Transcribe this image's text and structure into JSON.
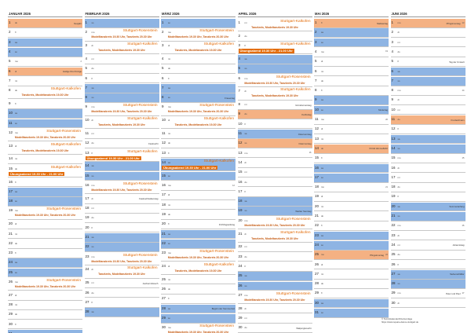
{
  "colors": {
    "weekend": "#8eb4e3",
    "holiday": "#f4b183",
    "event_text": "#e36c09",
    "event_box": "#e36c09"
  },
  "months": [
    {
      "label": "JANUAR 2026",
      "days": [
        {
          "n": "1",
          "w": "do",
          "type": "holiday",
          "hol": "Neujahr"
        },
        {
          "n": "2",
          "w": "fr"
        },
        {
          "n": "3",
          "w": "sa",
          "type": "weekend"
        },
        {
          "n": "4",
          "w": "so",
          "type": "weekend"
        },
        {
          "n": "5",
          "w": "mo",
          "kw": "2"
        },
        {
          "n": "6",
          "w": "di",
          "type": "holiday",
          "hol": "Heilige Drei Könige"
        },
        {
          "n": "7",
          "w": "mi"
        },
        {
          "n": "8",
          "w": "do",
          "event": {
            "title": "Stuttgart-Kalkofen",
            "sub": "Tanzkreis, Modeltanzkreis 19.30 Uhr"
          }
        },
        {
          "n": "9",
          "w": "fr"
        },
        {
          "n": "10",
          "w": "sa",
          "type": "weekend"
        },
        {
          "n": "11",
          "w": "so",
          "type": "weekend"
        },
        {
          "n": "12",
          "w": "mo",
          "kw": "3",
          "event": {
            "title": "Stuttgart-Rosenstein",
            "sub": "Modelltanzkreis 19.30 Uhr, Tanzkreis 20.30 Uhr"
          }
        },
        {
          "n": "13",
          "w": "di",
          "event": {
            "title": "Stuttgart-Kalkofen",
            "sub": "Tanzkreis, Modeltanzkreis 19.30 Uhr"
          }
        },
        {
          "n": "14",
          "w": "mi"
        },
        {
          "n": "15",
          "w": "do",
          "event": {
            "title": "Stuttgart-Kalkofen",
            "box": "Übungsabend 19.30 Uhr - 21.00 Uhr"
          }
        },
        {
          "n": "16",
          "w": "fr"
        },
        {
          "n": "17",
          "w": "sa",
          "type": "weekend"
        },
        {
          "n": "18",
          "w": "so",
          "type": "weekend"
        },
        {
          "n": "19",
          "w": "mo",
          "kw": "4",
          "event": {
            "title": "Stuttgart-Rosenstein",
            "sub": "Modelltanzkreis 19.30 Uhr, Tanzkreis 20.30 Uhr"
          }
        },
        {
          "n": "20",
          "w": "di"
        },
        {
          "n": "21",
          "w": "mi"
        },
        {
          "n": "22",
          "w": "do"
        },
        {
          "n": "23",
          "w": "fr"
        },
        {
          "n": "24",
          "w": "sa",
          "type": "weekend"
        },
        {
          "n": "25",
          "w": "so",
          "type": "weekend"
        },
        {
          "n": "26",
          "w": "mo",
          "kw": "5",
          "event": {
            "title": "Stuttgart-Rosenstein",
            "sub": "Modelltanzkreis 19.30 Uhr, Tanzkreis 20.30 Uhr"
          }
        },
        {
          "n": "27",
          "w": "di"
        },
        {
          "n": "28",
          "w": "mi"
        },
        {
          "n": "29",
          "w": "do"
        },
        {
          "n": "30",
          "w": "fr"
        },
        {
          "n": "31",
          "w": "sa",
          "type": "weekend"
        }
      ]
    },
    {
      "label": "FEBRUAR 2026",
      "days": [
        {
          "n": "1",
          "w": "so",
          "type": "weekend"
        },
        {
          "n": "2",
          "w": "mo",
          "kw": "6",
          "event": {
            "title": "Stuttgart-Rosenstein",
            "sub": "Modelltanzkreis 19.30 Uhr, Tanzkreis 20.30 Uhr"
          }
        },
        {
          "n": "3",
          "w": "di",
          "event": {
            "title": "Stuttgart-Kalkofen",
            "sub": "Tanzkreis, Modeltanzkreis 19.30 Uhr"
          }
        },
        {
          "n": "4",
          "w": "mi"
        },
        {
          "n": "5",
          "w": "do"
        },
        {
          "n": "6",
          "w": "fr"
        },
        {
          "n": "7",
          "w": "sa",
          "type": "weekend"
        },
        {
          "n": "8",
          "w": "so",
          "type": "weekend"
        },
        {
          "n": "9",
          "w": "mo",
          "kw": "7",
          "event": {
            "title": "Stuttgart-Rosenstein",
            "sub": "Modelltanzkreis 19.30 Uhr, Tanzkreis 20.30 Uhr"
          }
        },
        {
          "n": "10",
          "w": "di",
          "event": {
            "title": "Stuttgart-Kalkofen",
            "sub": "Tanzkreis, Modeltanzkreis 19.30 Uhr"
          }
        },
        {
          "n": "11",
          "w": "mi"
        },
        {
          "n": "12",
          "w": "do",
          "hol": "Fastnacht"
        },
        {
          "n": "13",
          "w": "fr",
          "event": {
            "title": "Stuttgart-Kalkofen",
            "box": "Übungsabend 19.30 Uhr - 21.00 Uhr"
          }
        },
        {
          "n": "14",
          "w": "sa",
          "type": "weekend"
        },
        {
          "n": "15",
          "w": "so",
          "type": "weekend"
        },
        {
          "n": "16",
          "w": "mo",
          "kw": "8",
          "event": {
            "title": "Stuttgart-Rosenstein",
            "sub": "Modelltanzkreis 19.30 Uhr, Tanzkreis 20.30 Uhr"
          }
        },
        {
          "n": "17",
          "w": "di",
          "hol": "Fastnachtsdienstag"
        },
        {
          "n": "18",
          "w": "mi"
        },
        {
          "n": "19",
          "w": "do"
        },
        {
          "n": "20",
          "w": "fr"
        },
        {
          "n": "21",
          "w": "sa",
          "type": "weekend"
        },
        {
          "n": "22",
          "w": "so",
          "type": "weekend"
        },
        {
          "n": "23",
          "w": "mo",
          "kw": "9",
          "event": {
            "title": "Stuttgart-Rosenstein",
            "sub": "Modelltanzkreis 19.30 Uhr, Tanzkreis 20.30 Uhr"
          }
        },
        {
          "n": "24",
          "w": "di",
          "event": {
            "title": "Stuttgart-Kalkofen",
            "sub": "Tanzkreis, Modeltanzkreis 19.30 Uhr"
          }
        },
        {
          "n": "25",
          "w": "mi",
          "hol": "Aschermittwoch"
        },
        {
          "n": "26",
          "w": "do"
        },
        {
          "n": "27",
          "w": "fr"
        },
        {
          "n": "28",
          "w": "sa",
          "type": "weekend"
        }
      ]
    },
    {
      "label": "MÄRZ 2026",
      "days": [
        {
          "n": "1",
          "w": "so",
          "type": "weekend"
        },
        {
          "n": "2",
          "w": "mo",
          "kw": "10",
          "event": {
            "title": "Stuttgart-Rosenstein",
            "sub": "Modelltanzkreis 19.30 Uhr, Tanzkreis 20.30 Uhr"
          }
        },
        {
          "n": "3",
          "w": "di",
          "event": {
            "title": "Stuttgart-Kalkofen",
            "sub": "Tanzkreis, Modeltanzkreis 19.30 Uhr"
          }
        },
        {
          "n": "4",
          "w": "mi"
        },
        {
          "n": "5",
          "w": "do"
        },
        {
          "n": "6",
          "w": "fr"
        },
        {
          "n": "7",
          "w": "sa",
          "type": "weekend"
        },
        {
          "n": "8",
          "w": "so",
          "type": "weekend",
          "hol": "Frauentag"
        },
        {
          "n": "9",
          "w": "mo",
          "kw": "11",
          "event": {
            "title": "Stuttgart-Rosenstein",
            "sub": "Modelltanzkreis 19.30 Uhr, Tanzkreis 20.30 Uhr"
          }
        },
        {
          "n": "10",
          "w": "di",
          "event": {
            "title": "Stuttgart-Kalkofen",
            "sub": "Tanzkreis, Modeltanzkreis 19.30 Uhr"
          }
        },
        {
          "n": "11",
          "w": "mi"
        },
        {
          "n": "12",
          "w": "do"
        },
        {
          "n": "13",
          "w": "fr"
        },
        {
          "n": "14",
          "w": "sa",
          "type": "weekend",
          "event": {
            "title": "Stuttgart-Kalkofen",
            "box": "Übungsabend 19.30 Uhr - 21.00 Uhr"
          }
        },
        {
          "n": "15",
          "w": "so",
          "type": "weekend"
        },
        {
          "n": "16",
          "w": "mo",
          "kw": "12"
        },
        {
          "n": "17",
          "w": "di"
        },
        {
          "n": "18",
          "w": "mi"
        },
        {
          "n": "19",
          "w": "do"
        },
        {
          "n": "20",
          "w": "fr",
          "hol": "Frühlingsanfang"
        },
        {
          "n": "21",
          "w": "sa",
          "type": "weekend"
        },
        {
          "n": "22",
          "w": "so",
          "type": "weekend"
        },
        {
          "n": "23",
          "w": "mo",
          "kw": "13",
          "event": {
            "title": "Stuttgart-Rosenstein",
            "sub": "Modelltanzkreis 19.30 Uhr, Tanzkreis 20.30 Uhr"
          }
        },
        {
          "n": "24",
          "w": "di",
          "event": {
            "title": "Stuttgart-Kalkofen",
            "sub": "Tanzkreis, Modeltanzkreis 19.30 Uhr"
          }
        },
        {
          "n": "25",
          "w": "mi"
        },
        {
          "n": "26",
          "w": "do"
        },
        {
          "n": "27",
          "w": "fr"
        },
        {
          "n": "28",
          "w": "sa",
          "type": "weekend",
          "hol": "Beginn der Sommerzeit"
        },
        {
          "n": "29",
          "w": "so",
          "type": "weekend"
        },
        {
          "n": "30",
          "w": "mo",
          "kw": "14",
          "event": {
            "title": "Stuttgart-Rosenstein",
            "sub": "Modelltanzkreis 19.30 Uhr, Tanzkreis 20.30 Uhr"
          }
        },
        {
          "n": "31",
          "w": "di"
        }
      ]
    },
    {
      "label": "APRIL 2026",
      "days": [
        {
          "n": "1",
          "w": "mi",
          "event": {
            "title": "Stuttgart-Kalkofen",
            "sub": "Tanzkreis, Modeltanzkreis 19.30 Uhr"
          }
        },
        {
          "n": "2",
          "w": "do"
        },
        {
          "n": "3",
          "w": "fr",
          "event": {
            "title": "Stuttgart-Kalkofen",
            "box": "Übungsabend 19.30 Uhr - 21.00 Uhr"
          }
        },
        {
          "n": "4",
          "w": "sa",
          "type": "weekend"
        },
        {
          "n": "5",
          "w": "so",
          "type": "weekend"
        },
        {
          "n": "6",
          "w": "mo",
          "kw": "15",
          "event": {
            "title": "Stuttgart-Rosenstein",
            "sub": "Modelltanzkreis 19.30 Uhr, Tanzkreis 20.30 Uhr"
          }
        },
        {
          "n": "7",
          "w": "di",
          "event": {
            "title": "Stuttgart-Kalkofen",
            "sub": "Tanzkreis, Modeltanzkreis 19.30 Uhr"
          }
        },
        {
          "n": "8",
          "w": "mi",
          "hol": "Gründonnerstag"
        },
        {
          "n": "9",
          "w": "do",
          "type": "holiday",
          "hol": "Karfreitag"
        },
        {
          "n": "10",
          "w": "fr"
        },
        {
          "n": "11",
          "w": "sa",
          "type": "weekend",
          "hol": "Ostersonntag"
        },
        {
          "n": "12",
          "w": "so",
          "type": "holiday",
          "hol": "Ostermontag"
        },
        {
          "n": "13",
          "w": "mo",
          "kw": "16"
        },
        {
          "n": "14",
          "w": "di"
        },
        {
          "n": "15",
          "w": "mi"
        },
        {
          "n": "16",
          "w": "do"
        },
        {
          "n": "17",
          "w": "fr"
        },
        {
          "n": "18",
          "w": "sa",
          "type": "weekend"
        },
        {
          "n": "19",
          "w": "so",
          "type": "weekend",
          "hol": "Weißer Sonntag"
        },
        {
          "n": "20",
          "w": "mo",
          "kw": "17",
          "event": {
            "title": "Stuttgart-Rosenstein",
            "sub": "Modelltanzkreis 19.30 Uhr, Tanzkreis 20.30 Uhr"
          }
        },
        {
          "n": "21",
          "w": "di",
          "event": {
            "title": "Stuttgart-Kalkofen",
            "sub": "Tanzkreis, Modeltanzkreis 19.30 Uhr"
          }
        },
        {
          "n": "22",
          "w": "mi"
        },
        {
          "n": "23",
          "w": "do"
        },
        {
          "n": "24",
          "w": "fr"
        },
        {
          "n": "25",
          "w": "sa",
          "type": "weekend"
        },
        {
          "n": "26",
          "w": "so",
          "type": "weekend"
        },
        {
          "n": "27",
          "w": "mo",
          "kw": "18",
          "event": {
            "title": "Stuttgart-Rosenstein",
            "sub": "Modelltanzkreis 19.30 Uhr, Tanzkreis 20.30 Uhr"
          }
        },
        {
          "n": "28",
          "w": "di"
        },
        {
          "n": "29",
          "w": "mi"
        },
        {
          "n": "30",
          "w": "do",
          "hol": "Walpurgisnacht"
        }
      ]
    },
    {
      "label": "MAI 2026",
      "days": [
        {
          "n": "1",
          "w": "fr",
          "type": "holiday",
          "hol": "Maifeiertag"
        },
        {
          "n": "2",
          "w": "sa",
          "type": "weekend"
        },
        {
          "n": "3",
          "w": "so",
          "type": "weekend"
        },
        {
          "n": "4",
          "w": "mo",
          "kw": "19"
        },
        {
          "n": "5",
          "w": "di"
        },
        {
          "n": "6",
          "w": "mi"
        },
        {
          "n": "7",
          "w": "do"
        },
        {
          "n": "8",
          "w": "fr"
        },
        {
          "n": "9",
          "w": "sa",
          "type": "weekend"
        },
        {
          "n": "10",
          "w": "so",
          "type": "weekend",
          "hol": "Muttertag"
        },
        {
          "n": "11",
          "w": "mo",
          "kw": "20"
        },
        {
          "n": "12",
          "w": "di"
        },
        {
          "n": "13",
          "w": "mi"
        },
        {
          "n": "14",
          "w": "do",
          "type": "holiday",
          "hol": "Christi Himmelfahrt"
        },
        {
          "n": "15",
          "w": "fr"
        },
        {
          "n": "16",
          "w": "sa",
          "type": "weekend"
        },
        {
          "n": "17",
          "w": "so",
          "type": "weekend"
        },
        {
          "n": "18",
          "w": "mo",
          "kw": "21"
        },
        {
          "n": "19",
          "w": "di"
        },
        {
          "n": "20",
          "w": "mi"
        },
        {
          "n": "21",
          "w": "do"
        },
        {
          "n": "22",
          "w": "fr"
        },
        {
          "n": "23",
          "w": "sa",
          "type": "weekend"
        },
        {
          "n": "24",
          "w": "so",
          "type": "weekend"
        },
        {
          "n": "25",
          "w": "mo",
          "kw": "22",
          "type": "holiday",
          "hol": "Pfingstmontag"
        },
        {
          "n": "26",
          "w": "di"
        },
        {
          "n": "27",
          "w": "mi"
        },
        {
          "n": "28",
          "w": "do"
        },
        {
          "n": "29",
          "w": "fr"
        },
        {
          "n": "30",
          "w": "sa",
          "type": "weekend"
        },
        {
          "n": "31",
          "w": "so",
          "type": "weekend"
        }
      ]
    },
    {
      "label": "JUNI 2026",
      "days": [
        {
          "n": "1",
          "w": "mo",
          "kw": "23",
          "type": "holiday",
          "hol": "Pfingstmontag"
        },
        {
          "n": "2",
          "w": "di"
        },
        {
          "n": "3",
          "w": "mi"
        },
        {
          "n": "4",
          "w": "do"
        },
        {
          "n": "5",
          "w": "fr",
          "hol": "Tag der Umwelt"
        },
        {
          "n": "6",
          "w": "sa",
          "type": "weekend"
        },
        {
          "n": "7",
          "w": "so",
          "type": "weekend"
        },
        {
          "n": "8",
          "w": "mo",
          "kw": "24"
        },
        {
          "n": "9",
          "w": "di"
        },
        {
          "n": "10",
          "w": "mi"
        },
        {
          "n": "11",
          "w": "do",
          "type": "holiday",
          "hol": "Fronleichnam"
        },
        {
          "n": "12",
          "w": "fr"
        },
        {
          "n": "13",
          "w": "sa",
          "type": "weekend"
        },
        {
          "n": "14",
          "w": "so",
          "type": "weekend"
        },
        {
          "n": "15",
          "w": "mo",
          "kw": "25"
        },
        {
          "n": "16",
          "w": "di"
        },
        {
          "n": "17",
          "w": "mi"
        },
        {
          "n": "18",
          "w": "do"
        },
        {
          "n": "19",
          "w": "fr"
        },
        {
          "n": "20",
          "w": "sa",
          "type": "weekend",
          "hol": "Sommeranfang"
        },
        {
          "n": "21",
          "w": "so",
          "type": "weekend"
        },
        {
          "n": "22",
          "w": "mo",
          "kw": "26"
        },
        {
          "n": "23",
          "w": "di"
        },
        {
          "n": "24",
          "w": "mi",
          "hol": "Johannistag"
        },
        {
          "n": "25",
          "w": "do"
        },
        {
          "n": "26",
          "w": "fr"
        },
        {
          "n": "27",
          "w": "sa",
          "type": "weekend",
          "hol": "Siebenschläfer"
        },
        {
          "n": "28",
          "w": "so",
          "type": "weekend"
        },
        {
          "n": "29",
          "w": "mo",
          "kw": "27",
          "hol": "Peter und Paul"
        },
        {
          "n": "30",
          "w": "di"
        }
      ]
    }
  ],
  "footer": {
    "line1": "© Terminkalender/Druckvorlage",
    "line2": "https://www.square-dance-stuttgart.de"
  }
}
